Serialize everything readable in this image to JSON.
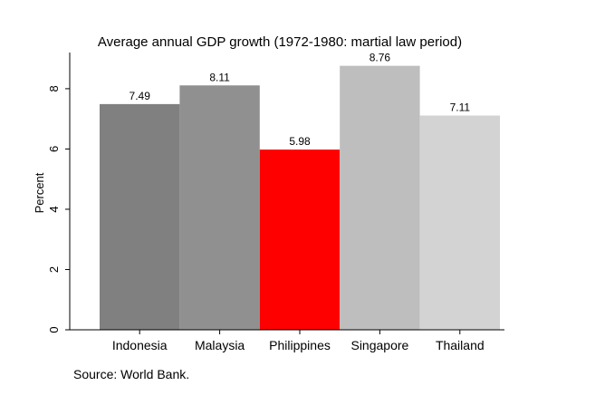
{
  "chart_data": {
    "type": "bar",
    "title": "Average annual GDP growth (1972-1980: martial law period)",
    "xlabel": "",
    "ylabel": "Percent",
    "categories": [
      "Indonesia",
      "Malaysia",
      "Philippines",
      "Singapore",
      "Thailand"
    ],
    "values": [
      7.49,
      8.11,
      5.98,
      8.76,
      7.11
    ],
    "value_labels": [
      "7.49",
      "8.11",
      "5.98",
      "8.76",
      "7.11"
    ],
    "colors": [
      "#808080",
      "#909090",
      "#ff0000",
      "#bebebe",
      "#d3d3d3"
    ],
    "ylim": [
      0,
      9.2
    ],
    "yticks": [
      0,
      2,
      4,
      6,
      8
    ],
    "ytick_labels": [
      "0",
      "2",
      "4",
      "6",
      "8"
    ],
    "grid": false,
    "legend": "none",
    "source": "Source: World Bank."
  }
}
